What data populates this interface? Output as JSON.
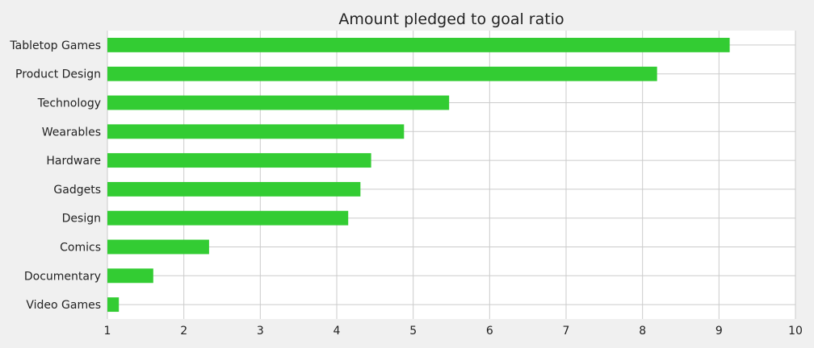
{
  "chart_data": {
    "type": "bar",
    "orientation": "horizontal",
    "title": "Amount pledged to goal ratio",
    "xlabel": "",
    "ylabel": "",
    "categories": [
      "Video Games",
      "Documentary",
      "Comics",
      "Design",
      "Gadgets",
      "Hardware",
      "Wearables",
      "Technology",
      "Product Design",
      "Tabletop Games"
    ],
    "values": [
      1.15,
      1.6,
      2.33,
      4.15,
      4.31,
      4.45,
      4.88,
      5.47,
      8.19,
      9.14
    ],
    "xlim": [
      1,
      10
    ],
    "xticks": [
      1,
      2,
      3,
      4,
      5,
      6,
      7,
      8,
      9,
      10
    ],
    "grid": true,
    "legend": "none",
    "colors": {
      "bar": "#33cc33",
      "plot_background": "#ffffff",
      "figure_background": "#f0f0f0",
      "grid": "#cbcbcb",
      "text": "#222222"
    }
  }
}
